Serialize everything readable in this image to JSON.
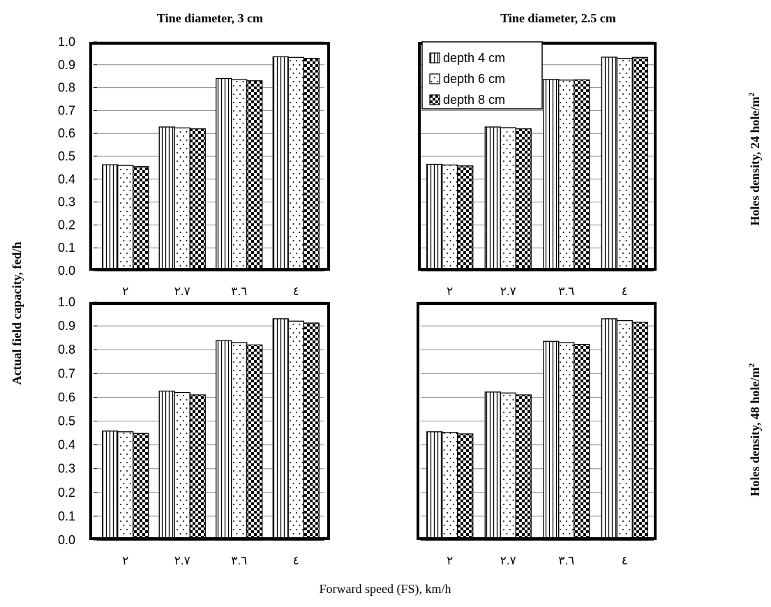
{
  "figure": {
    "col_titles": [
      "Tine diameter, 3 cm",
      "Tine diameter, 2.5 cm"
    ],
    "row_labels": [
      "Holes density, 24 hole/m",
      "Holes density, 48 hole/m"
    ],
    "row_label_superscript": "2",
    "ylabel": "Actual field capacity, fed/h",
    "xlabel": "Forward speed (FS), km/h"
  },
  "chart_data": [
    {
      "type": "bar",
      "title": "Tine diameter, 3 cm",
      "categories": [
        "٢",
        "٢.٧",
        "٣.٦",
        "٤"
      ],
      "series": [
        {
          "name": "depth 4 cm",
          "values": [
            0.463,
            0.628,
            0.84,
            0.935
          ]
        },
        {
          "name": "depth 6 cm",
          "values": [
            0.46,
            0.624,
            0.835,
            0.932
          ]
        },
        {
          "name": "depth 8 cm",
          "values": [
            0.455,
            0.62,
            0.83,
            0.928
          ]
        }
      ],
      "ylim": [
        0,
        1.0
      ],
      "yticks": [
        "0.0",
        "0.1",
        "0.2",
        "0.3",
        "0.4",
        "0.5",
        "0.6",
        "0.7",
        "0.8",
        "0.9",
        "1.0"
      ],
      "grid": true,
      "legend": "none"
    },
    {
      "type": "bar",
      "title": "Tine diameter, 2.5 cm",
      "categories": [
        "٢",
        "٢.٧",
        "٣.٦",
        "٤"
      ],
      "series": [
        {
          "name": "depth 4 cm",
          "values": [
            0.465,
            0.628,
            0.836,
            0.933
          ]
        },
        {
          "name": "depth 6 cm",
          "values": [
            0.462,
            0.625,
            0.833,
            0.928
          ]
        },
        {
          "name": "depth 8 cm",
          "values": [
            0.458,
            0.62,
            0.834,
            0.932
          ]
        }
      ],
      "ylim": [
        0,
        1.0
      ],
      "grid": true,
      "legend": "top-left"
    },
    {
      "type": "bar",
      "categories": [
        "٢",
        "٢.٧",
        "٣.٦",
        "٤"
      ],
      "series": [
        {
          "name": "depth 4 cm",
          "values": [
            0.458,
            0.626,
            0.838,
            0.93
          ]
        },
        {
          "name": "depth 6 cm",
          "values": [
            0.455,
            0.62,
            0.83,
            0.92
          ]
        },
        {
          "name": "depth 8 cm",
          "values": [
            0.448,
            0.61,
            0.82,
            0.912
          ]
        }
      ],
      "ylim": [
        0,
        1.0
      ],
      "yticks": [
        "0.0",
        "0.1",
        "0.2",
        "0.3",
        "0.4",
        "0.5",
        "0.6",
        "0.7",
        "0.8",
        "0.9",
        "1.0"
      ],
      "grid": true,
      "legend": "none"
    },
    {
      "type": "bar",
      "categories": [
        "٢",
        "٢.٧",
        "٣.٦",
        "٤"
      ],
      "series": [
        {
          "name": "depth 4 cm",
          "values": [
            0.455,
            0.622,
            0.835,
            0.93
          ]
        },
        {
          "name": "depth 6 cm",
          "values": [
            0.452,
            0.618,
            0.83,
            0.922
          ]
        },
        {
          "name": "depth 8 cm",
          "values": [
            0.446,
            0.61,
            0.822,
            0.915
          ]
        }
      ],
      "ylim": [
        0,
        1.0
      ],
      "grid": true,
      "legend": "none"
    }
  ],
  "colors": {
    "bar_stroke": "#000000",
    "bar_fill": "#ffffff",
    "grid": "#8c8c8c",
    "frame": "#000000"
  }
}
